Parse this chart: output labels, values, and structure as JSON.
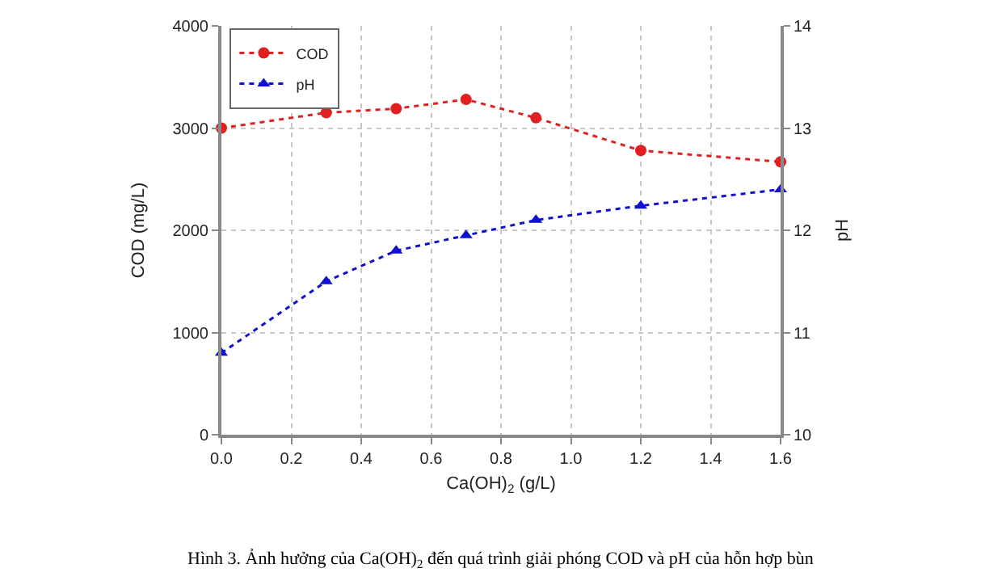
{
  "chart_data": {
    "type": "line",
    "x": [
      0.0,
      0.3,
      0.5,
      0.7,
      0.9,
      1.2,
      1.6
    ],
    "series": [
      {
        "name": "COD",
        "color": "#e02020",
        "values": [
          3000,
          3150,
          3190,
          3280,
          3100,
          2780,
          2670
        ],
        "marker": "circle"
      },
      {
        "name": "pH",
        "color": "#1010d0",
        "values": [
          10.8,
          11.5,
          11.8,
          11.95,
          12.1,
          12.24,
          12.4
        ],
        "marker": "triangle",
        "axis": "y2"
      }
    ],
    "xlabel": "Ca(OH)$_{2}$ (g/L)",
    "ylabel": "COD (mg/L)",
    "y2label": "pH",
    "xlim": [
      0.0,
      1.6
    ],
    "xticks": [
      {
        "value": 0,
        "label": "0.0"
      },
      0.2,
      0.4,
      0.6,
      0.8,
      {
        "value": 1,
        "label": "1.0"
      },
      1.2,
      1.4,
      1.6
    ],
    "ylim": [
      0,
      4000
    ],
    "yticks": [
      0,
      1000,
      2000,
      3000,
      4000
    ],
    "y2lim": [
      10,
      14
    ],
    "y2ticks": [
      10,
      11,
      12,
      13,
      14
    ],
    "grid": true,
    "legend": "top left",
    "line_style": "dotted",
    "annotations": [
      "Hình 3. Ảnh hưởng của Ca(OH)$_{2}$ đến quá trình giải phóng COD và pH của hỗn hợp bùn"
    ]
  }
}
